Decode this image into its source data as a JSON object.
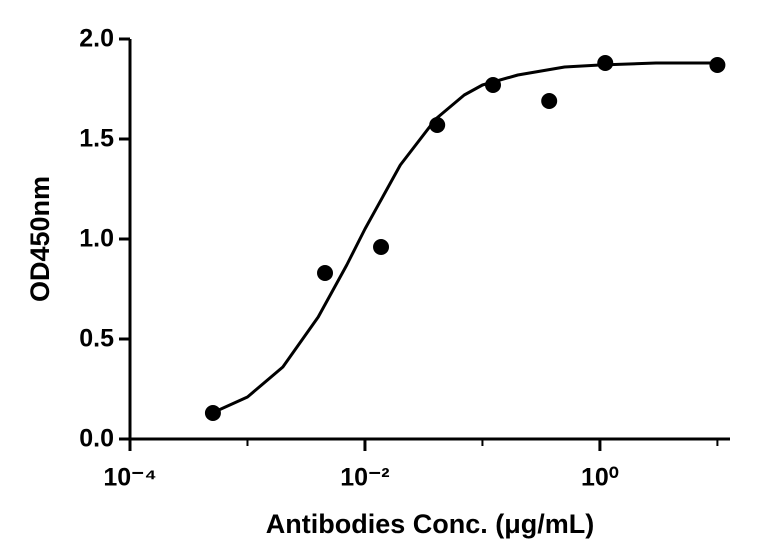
{
  "chart_data": {
    "type": "scatter",
    "x_label": "Antibodies Conc. (μg/mL)",
    "y_label": "OD450nm",
    "x_log": true,
    "xlim": [
      0.0001,
      12.8
    ],
    "ylim": [
      0,
      2
    ],
    "xticks": [
      {
        "value": 0.0001,
        "label": "10⁻⁴"
      },
      {
        "value": 0.01,
        "label": "10⁻²"
      },
      {
        "value": 1,
        "label": "10⁰"
      }
    ],
    "xminor_ticks": [
      0.001,
      0.1,
      10
    ],
    "yticks": [
      {
        "value": 0,
        "label": "0.0"
      },
      {
        "value": 0.5,
        "label": "0.5"
      },
      {
        "value": 1,
        "label": "1.0"
      },
      {
        "value": 1.5,
        "label": "1.5"
      },
      {
        "value": 2,
        "label": "2.0"
      }
    ],
    "series": [
      {
        "kind": "points",
        "color": "#000000",
        "x": [
          0.000508,
          0.00457,
          0.0137,
          0.0412,
          0.123,
          0.37,
          1.11,
          10
        ],
        "values": [
          0.13,
          0.83,
          0.96,
          1.57,
          1.77,
          1.69,
          1.88,
          1.87
        ]
      },
      {
        "kind": "curve",
        "color": "#000000",
        "x": [
          0.0005,
          0.001,
          0.002,
          0.004,
          0.007,
          0.01,
          0.02,
          0.04,
          0.07,
          0.1,
          0.2,
          0.5,
          1,
          3,
          10
        ],
        "values": [
          0.13,
          0.21,
          0.36,
          0.61,
          0.87,
          1.05,
          1.37,
          1.6,
          1.72,
          1.77,
          1.82,
          1.86,
          1.87,
          1.88,
          1.88
        ]
      }
    ]
  }
}
